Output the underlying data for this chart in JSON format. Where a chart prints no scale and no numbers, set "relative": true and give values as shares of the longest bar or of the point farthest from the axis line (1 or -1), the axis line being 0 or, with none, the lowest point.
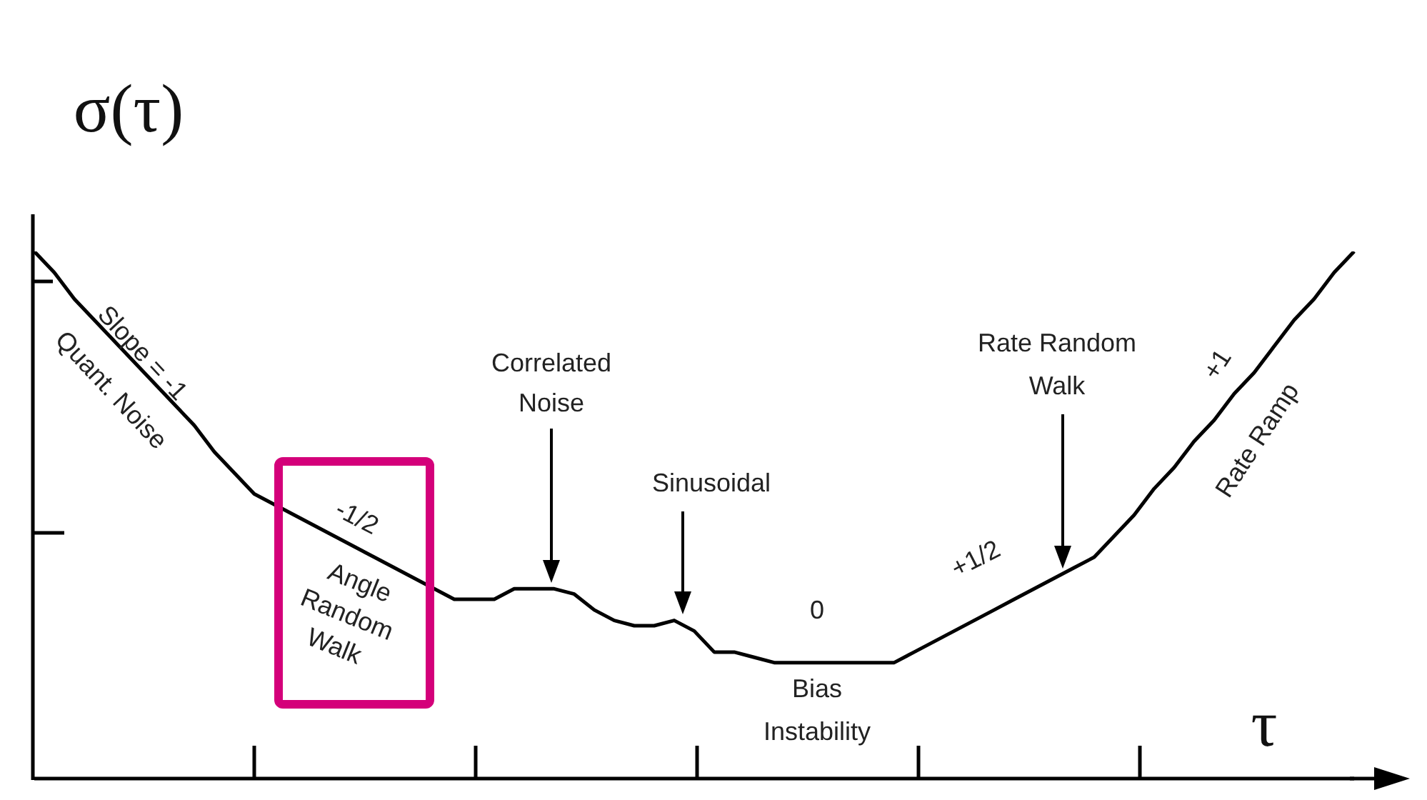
{
  "chart_data": {
    "type": "line",
    "relative": true,
    "xlabel": "τ",
    "ylabel": "σ(τ)",
    "marker": "none",
    "line_style": "solid",
    "categories": [
      null,
      null,
      null,
      null,
      null,
      null,
      null,
      null,
      null,
      null,
      null,
      null,
      null,
      null,
      null,
      null,
      null,
      null,
      null,
      null,
      null,
      null,
      null,
      null,
      null,
      null,
      null,
      null,
      null,
      null,
      null,
      null,
      null,
      null,
      null,
      null,
      null,
      null,
      null,
      null,
      null,
      null,
      null,
      null,
      null,
      null,
      null,
      null,
      null,
      null,
      null,
      null,
      null,
      null,
      null,
      null,
      null,
      null,
      null,
      null,
      null,
      null,
      null,
      null,
      null,
      null,
      null
    ],
    "series": [
      {
        "color": "#000000",
        "values": [
          1.0,
          0.96,
          0.91,
          0.87,
          0.83,
          0.79,
          0.75,
          0.71,
          0.67,
          0.62,
          0.58,
          0.54,
          0.52,
          0.5,
          0.48,
          0.46,
          0.44,
          0.42,
          0.4,
          0.38,
          0.36,
          0.34,
          0.34,
          0.34,
          0.36,
          0.36,
          0.36,
          0.35,
          0.32,
          0.3,
          0.29,
          0.29,
          0.3,
          0.28,
          0.24,
          0.24,
          0.23,
          0.22,
          0.22,
          0.22,
          0.22,
          0.22,
          0.22,
          0.22,
          0.24,
          0.26,
          0.28,
          0.3,
          0.32,
          0.34,
          0.36,
          0.38,
          0.4,
          0.42,
          0.46,
          0.5,
          0.55,
          0.59,
          0.64,
          0.68,
          0.73,
          0.77,
          0.82,
          0.87,
          0.91,
          0.96,
          1.0
        ]
      }
    ],
    "annotations": [
      "Slope = -1",
      "Quant. Noise",
      "-1/2",
      "Angle\nRandom\nWalk",
      "Correlated\nNoise",
      "Sinusoidal",
      "0",
      "Bias\nInstability",
      "+1/2",
      "Rate Random\nWalk",
      "+1",
      "Rate Ramp"
    ]
  }
}
